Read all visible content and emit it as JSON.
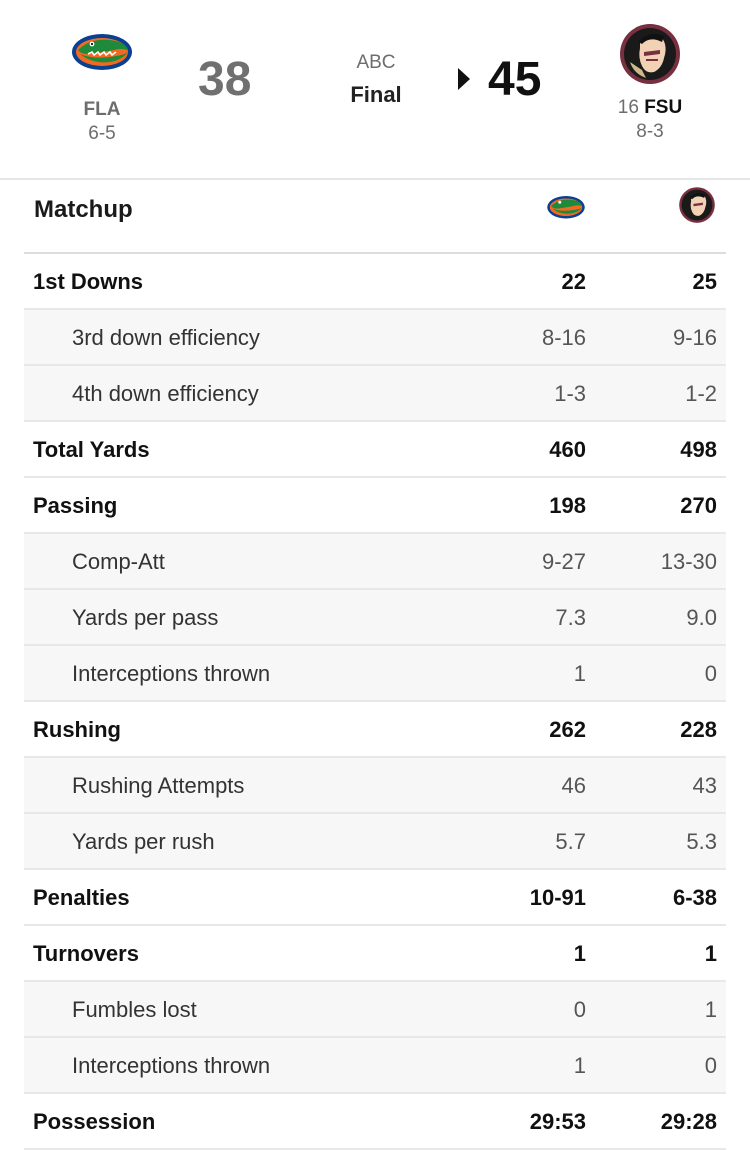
{
  "game": {
    "away": {
      "abbr": "FLA",
      "record": "6-5",
      "score": "38",
      "logo": "gator-logo"
    },
    "home": {
      "rank": "16",
      "abbr": "FSU",
      "record": "8-3",
      "score": "45",
      "logo": "seminole-logo"
    },
    "network": "ABC",
    "status": "Final"
  },
  "matchup": {
    "title": "Matchup",
    "rows": [
      {
        "label": "1st Downs",
        "away": "22",
        "home": "25",
        "kind": "main"
      },
      {
        "label": "3rd down efficiency",
        "away": "8-16",
        "home": "9-16",
        "kind": "sub"
      },
      {
        "label": "4th down efficiency",
        "away": "1-3",
        "home": "1-2",
        "kind": "sub"
      },
      {
        "label": "Total Yards",
        "away": "460",
        "home": "498",
        "kind": "main"
      },
      {
        "label": "Passing",
        "away": "198",
        "home": "270",
        "kind": "main"
      },
      {
        "label": "Comp-Att",
        "away": "9-27",
        "home": "13-30",
        "kind": "sub"
      },
      {
        "label": "Yards per pass",
        "away": "7.3",
        "home": "9.0",
        "kind": "sub"
      },
      {
        "label": "Interceptions thrown",
        "away": "1",
        "home": "0",
        "kind": "sub"
      },
      {
        "label": "Rushing",
        "away": "262",
        "home": "228",
        "kind": "main"
      },
      {
        "label": "Rushing Attempts",
        "away": "46",
        "home": "43",
        "kind": "sub"
      },
      {
        "label": "Yards per rush",
        "away": "5.7",
        "home": "5.3",
        "kind": "sub"
      },
      {
        "label": "Penalties",
        "away": "10-91",
        "home": "6-38",
        "kind": "main"
      },
      {
        "label": "Turnovers",
        "away": "1",
        "home": "1",
        "kind": "main"
      },
      {
        "label": "Fumbles lost",
        "away": "0",
        "home": "1",
        "kind": "sub"
      },
      {
        "label": "Interceptions thrown",
        "away": "1",
        "home": "0",
        "kind": "sub"
      },
      {
        "label": "Possession",
        "away": "29:53",
        "home": "29:28",
        "kind": "main"
      }
    ]
  },
  "colors": {
    "fla_blue": "#0b3f91",
    "fla_orange": "#f26a21",
    "fla_green": "#1f8a3a",
    "fsu_garnet": "#782f40",
    "fsu_gold": "#ceb888"
  }
}
